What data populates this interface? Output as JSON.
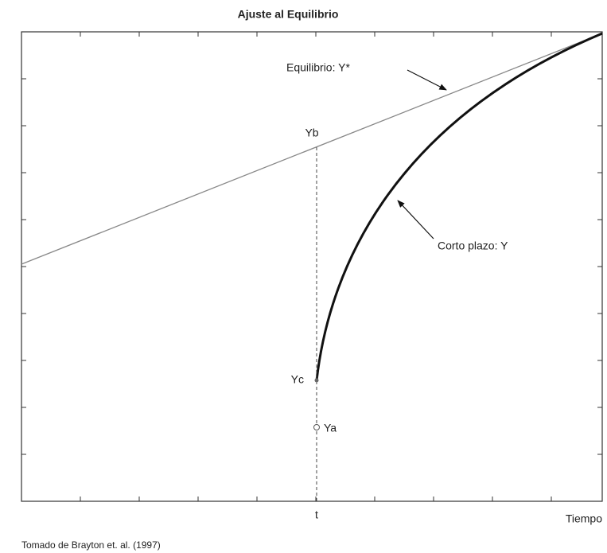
{
  "title": "Ajuste al Equilibrio",
  "labels": {
    "equilibrium": "Equilibrio: Y*",
    "yb": "Yb",
    "short_run": "Corto plazo: Y",
    "yc": "Yc",
    "ya": "Ya",
    "t": "t",
    "x_axis": "Tiempo"
  },
  "source": "Tomado de Brayton et. al. (1997)"
}
